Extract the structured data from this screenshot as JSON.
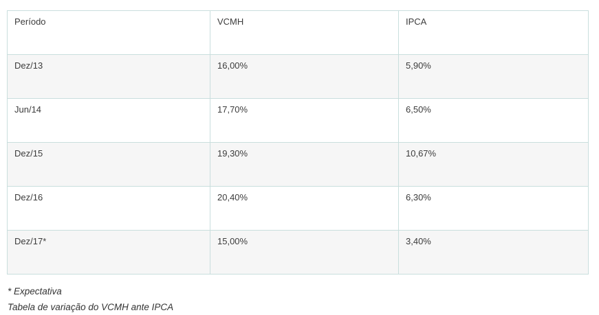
{
  "table": {
    "headers": [
      "Período",
      "VCMH",
      "IPCA"
    ],
    "rows": [
      [
        "Dez/13",
        "16,00%",
        "5,90%"
      ],
      [
        "Jun/14",
        "17,70%",
        "6,50%"
      ],
      [
        "Dez/15",
        "19,30%",
        "10,67%"
      ],
      [
        "Dez/16",
        "20,40%",
        "6,30%"
      ],
      [
        "Dez/17*",
        "15,00%",
        "3,40%"
      ]
    ]
  },
  "notes": {
    "footnote": "* Expectativa",
    "caption": "Tabela de variação do VCMH ante IPCA"
  }
}
